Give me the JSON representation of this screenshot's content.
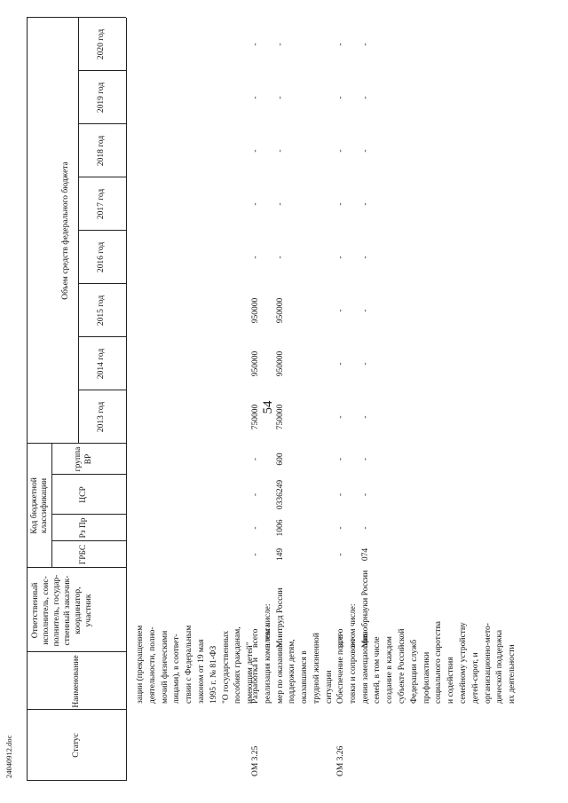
{
  "header": {
    "page_number": "54"
  },
  "footer": "24040912.doc",
  "table": {
    "headers": {
      "status": "Статус",
      "name": "Наименование",
      "responsible": [
        "Ответственный",
        "исполнитель, соис-",
        "полнитель, государ-",
        "ственный заказчик-",
        "координатор,",
        "участник"
      ],
      "code_group": [
        "Код бюджетной",
        "классификации"
      ],
      "codes": [
        [
          "ГРБС"
        ],
        [
          "Рз Пр"
        ],
        [
          "ЦСР"
        ],
        [
          "группа",
          "ВР"
        ]
      ],
      "budget_group": "Объем средств федерального бюджета",
      "years": [
        "2013 год",
        "2014 год",
        "2015 год",
        "2016 год",
        "2017 год",
        "2018 год",
        "2019 год",
        "2020 год"
      ]
    },
    "continuation": [
      "зации (прекращением",
      "деятельности, полно-",
      "мочий физическими",
      "лицами), в соответ-",
      "ствии с Федеральным",
      "законом от 19 мая",
      "1995 г. № 81-ФЗ",
      "\"О государственных",
      "пособиях гражданам,",
      "имеющим детей\""
    ],
    "rows": [
      {
        "status": "ОМ 3.25",
        "name": [
          "Разработка и",
          "реализация комплекса",
          "мер по оказанию",
          "поддержки детям,",
          "оказавшимся в",
          "трудной жизненной",
          "ситуации"
        ],
        "lines": [
          {
            "responsible": "всего",
            "codes": [
              "-",
              "-",
              "-",
              "-"
            ],
            "values": [
              "750000",
              "950000",
              "950000",
              "-",
              "-",
              "-",
              "-",
              "-"
            ]
          },
          {
            "responsible": "в том числе:"
          },
          {
            "responsible": "Минтруд России",
            "codes": [
              "149",
              "1006",
              "0336249",
              "600"
            ],
            "values": [
              "750000",
              "950000",
              "950000",
              "-",
              "-",
              "-",
              "-",
              "-"
            ]
          }
        ]
      },
      {
        "status": "ОМ 3.26",
        "name": [
          "Обеспечение подго-",
          "товки и сопровож-",
          "дения замещающих",
          "семей, в том числе",
          "создание в каждом",
          "субъекте Российской",
          "Федерации служб",
          "профилактики",
          "социального сиротства",
          "и содействия",
          "семейному устройству",
          "детей-сирот, и",
          "организационно-мето-",
          "дической поддержка",
          "их деятельности"
        ],
        "lines": [
          {
            "responsible": "всего",
            "codes": [
              "-",
              "-",
              "-",
              "-"
            ],
            "values": [
              "-",
              "-",
              "-",
              "-",
              "-",
              "-",
              "-",
              "-"
            ]
          },
          {
            "responsible": "в том числе:"
          },
          {
            "responsible": "Минобрнауки России",
            "codes": [
              "074",
              "-",
              "-",
              "-"
            ],
            "values": [
              "-",
              "-",
              "-",
              "-",
              "-",
              "-",
              "-",
              "-"
            ]
          }
        ]
      }
    ]
  }
}
